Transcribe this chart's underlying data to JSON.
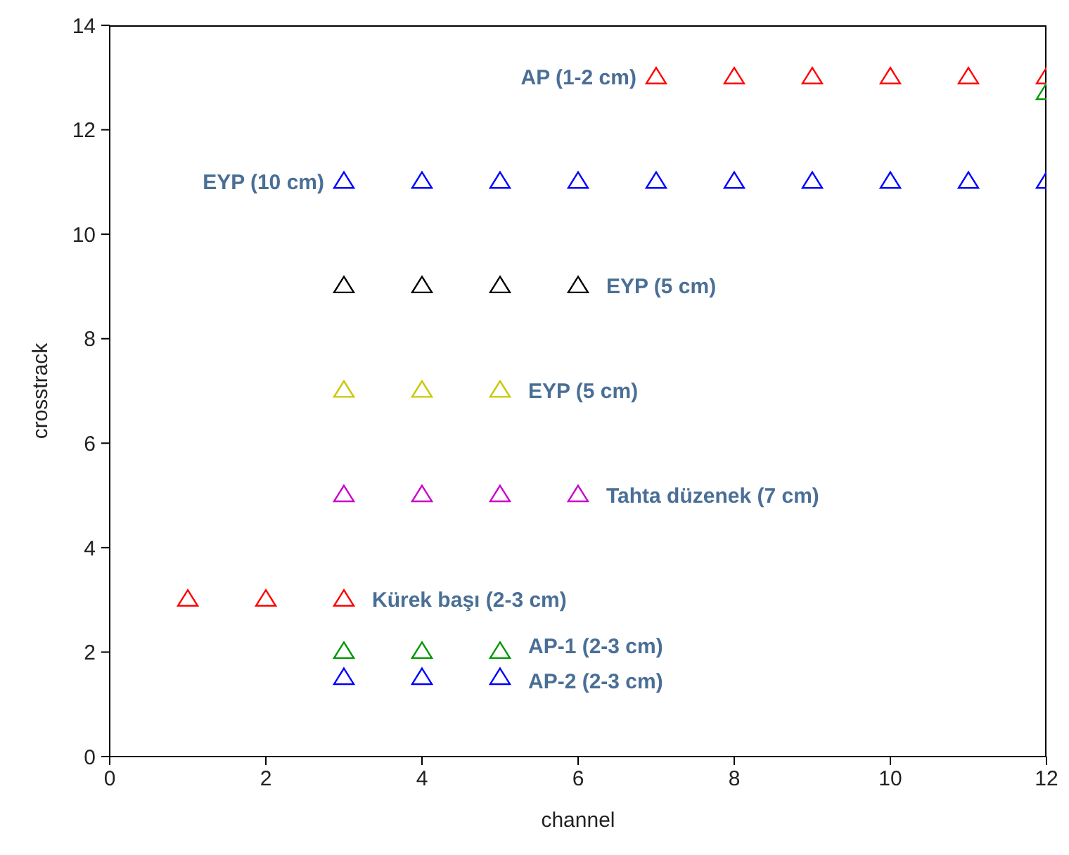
{
  "chart_data": {
    "type": "scatter",
    "xlabel": "channel",
    "ylabel": "crosstrack",
    "xlim": [
      0,
      12
    ],
    "ylim": [
      0,
      14
    ],
    "xticks": [
      0,
      2,
      4,
      6,
      8,
      10,
      12
    ],
    "yticks": [
      0,
      2,
      4,
      6,
      8,
      10,
      12,
      14
    ],
    "marker": "triangle",
    "grid": false,
    "legend": false,
    "series": [
      {
        "name": "AP (1-2 cm)",
        "color": "#ff0000",
        "x": [
          7,
          8,
          9,
          10,
          11,
          12
        ],
        "values": [
          13,
          13,
          13,
          13,
          13,
          13
        ]
      },
      {
        "name": "EYP (10 cm)",
        "color": "#0000ff",
        "x": [
          3,
          4,
          5,
          6,
          7,
          8,
          9,
          10,
          11,
          12
        ],
        "values": [
          11,
          11,
          11,
          11,
          11,
          11,
          11,
          11,
          11,
          11
        ]
      },
      {
        "name": "EYP (5 cm)",
        "color": "#000000",
        "x": [
          3,
          4,
          5,
          6
        ],
        "values": [
          9,
          9,
          9,
          9
        ]
      },
      {
        "name": "EYP (5 cm)",
        "color": "#c8c800",
        "x": [
          3,
          4,
          5
        ],
        "values": [
          7,
          7,
          7
        ]
      },
      {
        "name": "Tahta düzenek (7 cm)",
        "color": "#cc00cc",
        "x": [
          3,
          4,
          5,
          6
        ],
        "values": [
          5,
          5,
          5,
          5
        ]
      },
      {
        "name": "Kürek başı (2-3 cm)",
        "color": "#ff0000",
        "x": [
          1,
          2,
          3
        ],
        "values": [
          3,
          3,
          3
        ]
      },
      {
        "name": "AP-1 (2-3 cm)",
        "color": "#009900",
        "x": [
          3,
          4,
          5
        ],
        "values": [
          2,
          2,
          2
        ]
      },
      {
        "name": "AP-2 (2-3 cm)",
        "color": "#0000ff",
        "x": [
          3,
          4,
          5
        ],
        "values": [
          1.5,
          1.5,
          1.5
        ]
      },
      {
        "color": "#009900",
        "x": [
          12
        ],
        "values": [
          12.7
        ]
      }
    ]
  }
}
